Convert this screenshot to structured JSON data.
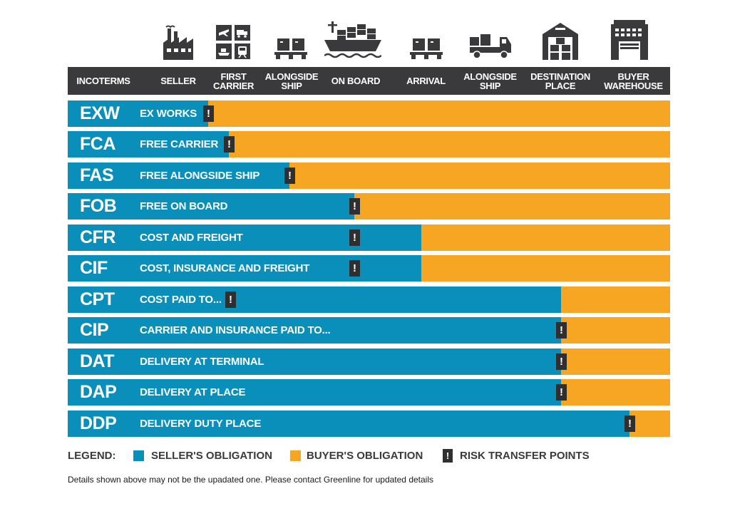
{
  "colors": {
    "seller": "#0a8fba",
    "buyer": "#f6a623",
    "header_bg": "#3a3a3c",
    "risk_marker": "#2f2f31"
  },
  "icons": [
    "factory-icon",
    "transport-modes-icon",
    "pallet-icon",
    "cargo-ship-icon",
    "pallet-icon",
    "truck-icon",
    "warehouse-icon",
    "buyer-warehouse-icon"
  ],
  "header": {
    "incoterms": "INCOTERMS",
    "columns": [
      "SELLER",
      "FIRST\nCARRIER",
      "ALONGSIDE\nSHIP",
      "ON BOARD",
      "ARRIVAL",
      "ALONGSIDE\nSHIP",
      "DESTINATION\nPLACE",
      "BUYER\nWAREHOUSE"
    ]
  },
  "rows": [
    {
      "code": "EXW",
      "name": "EX WORKS",
      "seller_fraction": 0.233,
      "risk_fraction": 0.233
    },
    {
      "code": "FCA",
      "name": "FREE CARRIER",
      "seller_fraction": 0.268,
      "risk_fraction": 0.268
    },
    {
      "code": "FAS",
      "name": "FREE ALONGSIDE SHIP",
      "seller_fraction": 0.368,
      "risk_fraction": 0.368
    },
    {
      "code": "FOB",
      "name": "FREE ON BOARD",
      "seller_fraction": 0.476,
      "risk_fraction": 0.476
    },
    {
      "code": "CFR",
      "name": "COST AND FREIGHT",
      "seller_fraction": 0.587,
      "risk_fraction": 0.476
    },
    {
      "code": "CIF",
      "name": "COST, INSURANCE AND FREIGHT",
      "seller_fraction": 0.587,
      "risk_fraction": 0.476
    },
    {
      "code": "CPT",
      "name": "COST PAID TO...",
      "seller_fraction": 0.819,
      "risk_fraction": 0.27
    },
    {
      "code": "CIP",
      "name": "CARRIER AND INSURANCE PAID TO...",
      "seller_fraction": 0.819,
      "risk_fraction": 0.819
    },
    {
      "code": "DAT",
      "name": "DELIVERY AT TERMINAL",
      "seller_fraction": 0.819,
      "risk_fraction": 0.819
    },
    {
      "code": "DAP",
      "name": "DELIVERY AT PLACE",
      "seller_fraction": 0.819,
      "risk_fraction": 0.819
    },
    {
      "code": "DDP",
      "name": "DELIVERY DUTY PLACE",
      "seller_fraction": 0.933,
      "risk_fraction": 0.933
    }
  ],
  "risk_symbol": "!",
  "legend": {
    "title": "LEGEND:",
    "seller": "SELLER'S OBLIGATION",
    "buyer": "BUYER'S OBLIGATION",
    "risk": "RISK TRANSFER POINTS"
  },
  "note": "Details shown above may not be the upadated one. Please contact Greenline for updated details"
}
